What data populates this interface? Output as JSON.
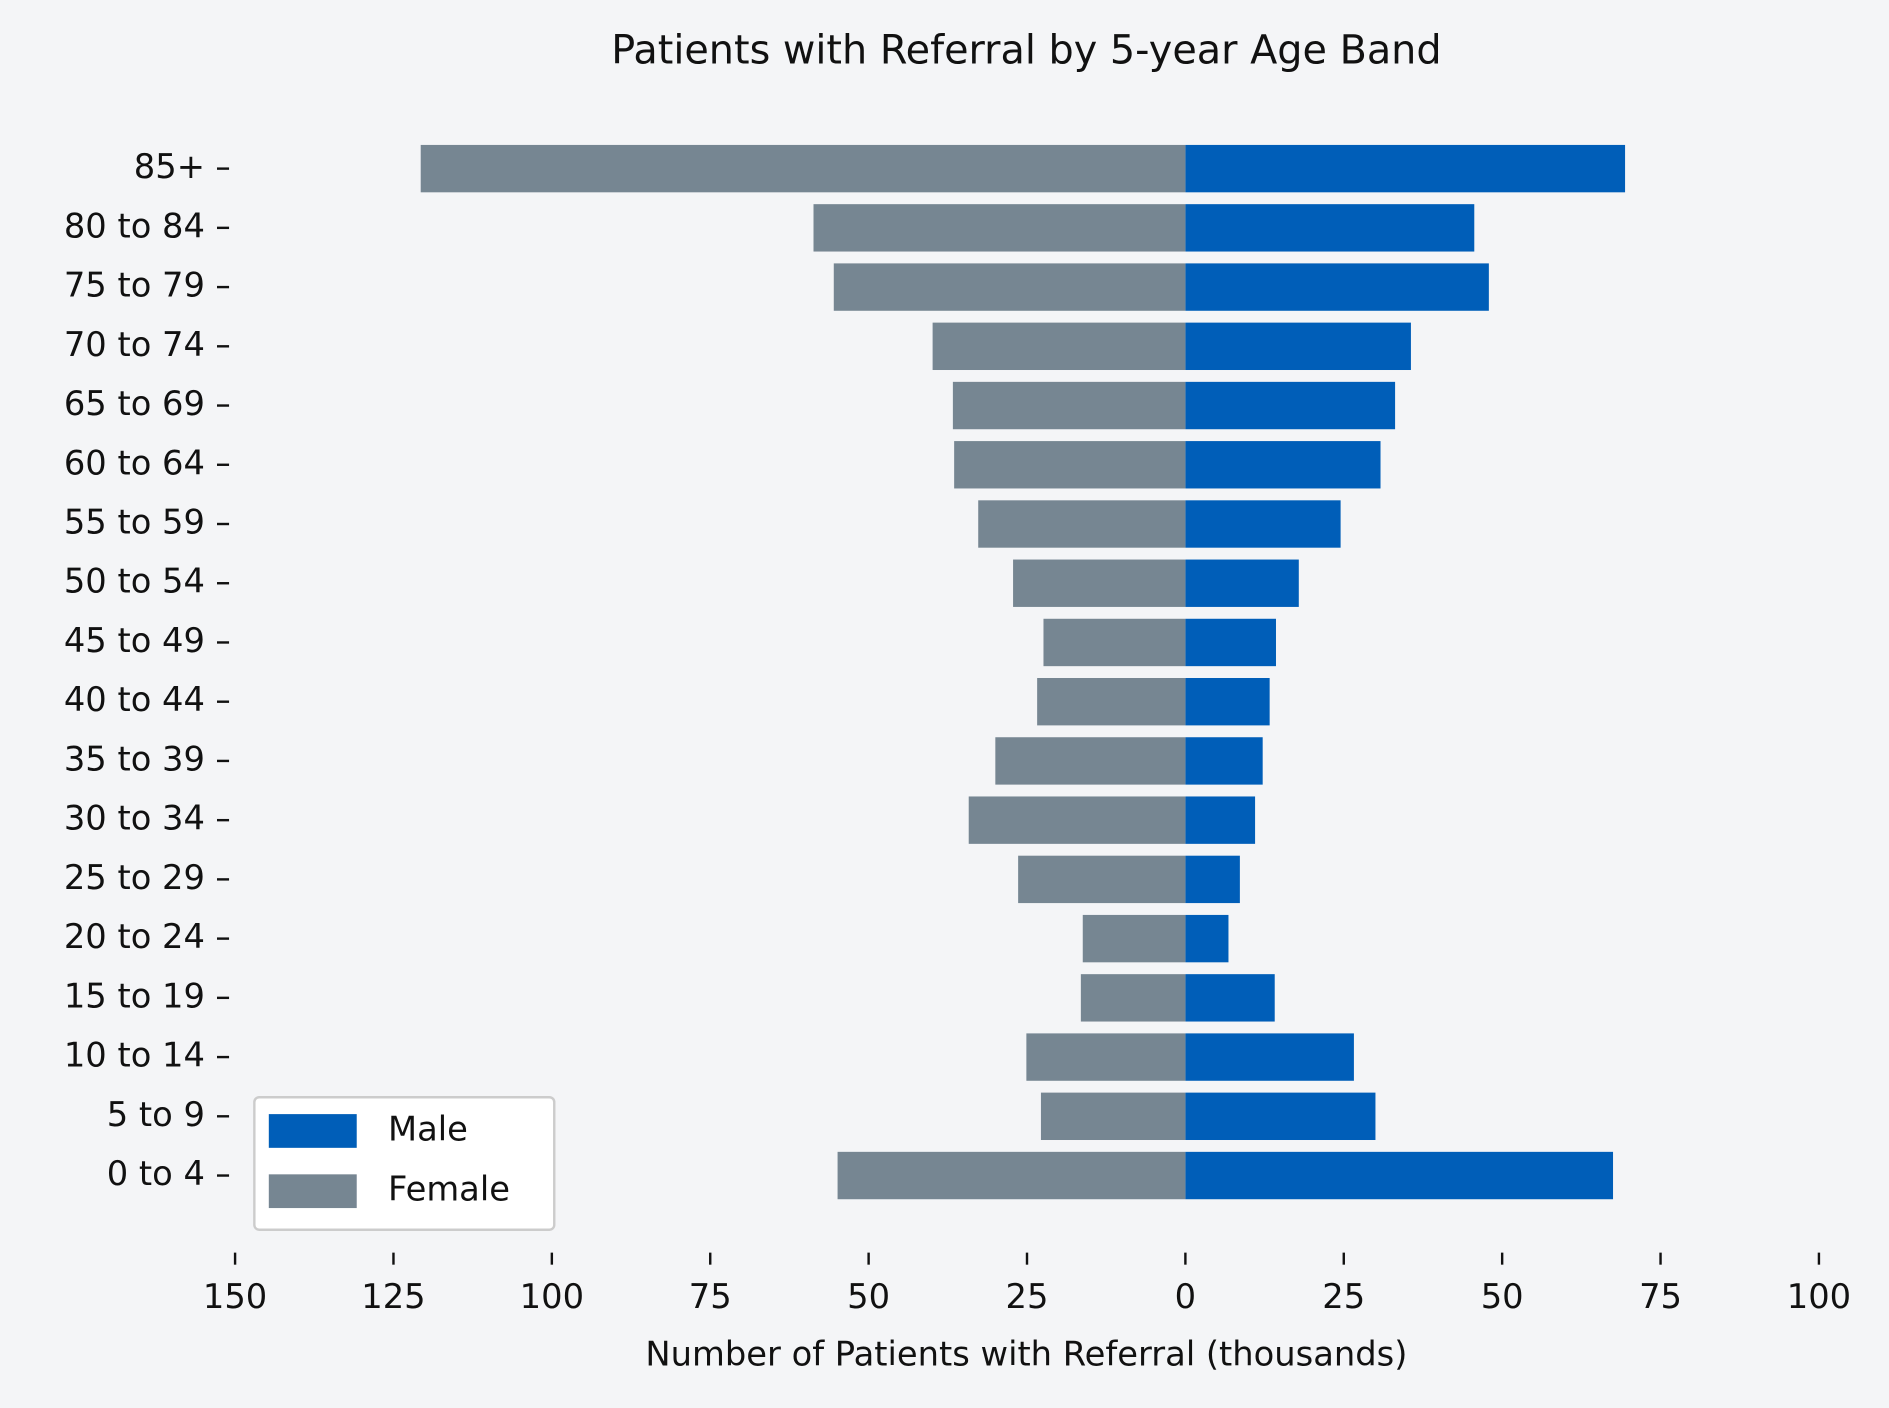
{
  "chart_data": {
    "type": "bar",
    "orientation": "horizontal",
    "title": "Patients with Referral by 5-year Age Band",
    "xlabel": "Number of Patients with Referral (thousands)",
    "categories": [
      "0 to 4",
      "5 to 9",
      "10 to 14",
      "15 to 19",
      "20 to 24",
      "25 to 29",
      "30 to 34",
      "35 to 39",
      "40 to 44",
      "45 to 49",
      "50 to 54",
      "55 to 59",
      "60 to 64",
      "65 to 69",
      "70 to 74",
      "75 to 79",
      "80 to 84",
      "85+"
    ],
    "series": [
      {
        "name": "Male",
        "color": "#005eb8",
        "values": [
          67.5,
          30.0,
          26.6,
          14.1,
          6.8,
          8.6,
          11.0,
          12.2,
          13.3,
          14.3,
          17.9,
          24.5,
          30.8,
          33.1,
          35.6,
          47.9,
          45.6,
          69.4
        ]
      },
      {
        "name": "Female",
        "color": "#768692",
        "values": [
          -54.9,
          -22.8,
          -25.1,
          -16.5,
          -16.2,
          -26.4,
          -34.2,
          -30.0,
          -23.4,
          -22.4,
          -27.2,
          -32.7,
          -36.5,
          -36.7,
          -39.9,
          -55.5,
          -58.7,
          -120.7
        ]
      }
    ],
    "xlim": [
      -150,
      100
    ],
    "xticks": [
      {
        "value": -150,
        "label": "150"
      },
      {
        "value": -125,
        "label": "125"
      },
      {
        "value": -100,
        "label": "100"
      },
      {
        "value": -75,
        "label": "75"
      },
      {
        "value": -50,
        "label": "50"
      },
      {
        "value": -25,
        "label": "25"
      },
      0,
      25,
      50,
      75,
      100
    ],
    "legend": "lower left"
  }
}
